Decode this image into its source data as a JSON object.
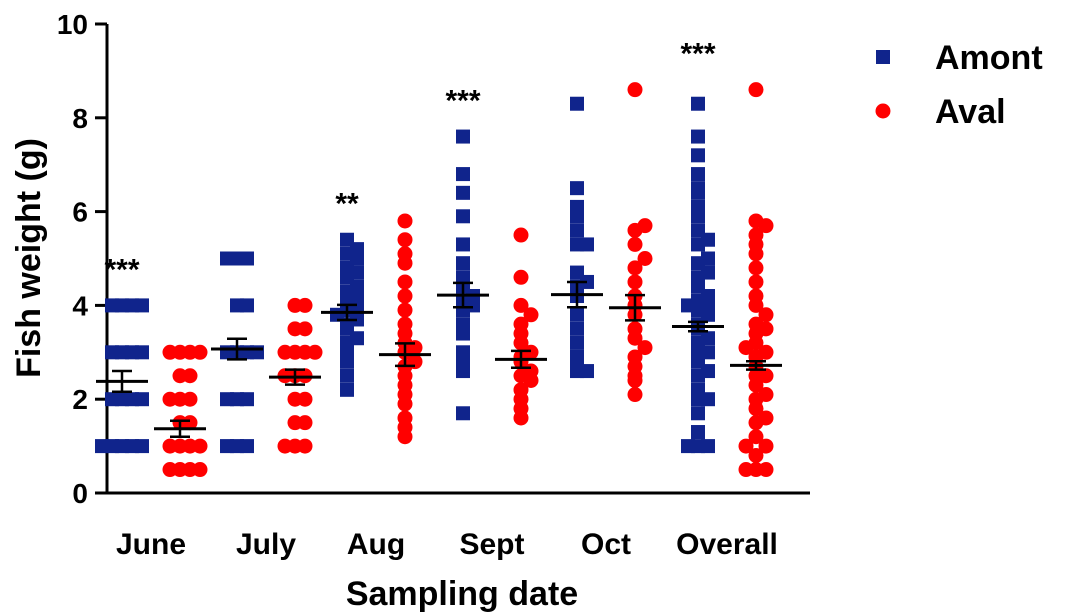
{
  "chart_data": {
    "type": "scatter",
    "ylabel": "Fish weight (g)",
    "xlabel": "Sampling date",
    "ylim": [
      0,
      10
    ],
    "yticks": [
      "0",
      "2",
      "4",
      "6",
      "8",
      "10"
    ],
    "categories": [
      "June",
      "July",
      "Aug",
      "Sept",
      "Oct",
      "Overall"
    ],
    "legend_position": "top-right",
    "colors": {
      "Amont": "#10248c",
      "Aval": "#ff0000"
    },
    "series": [
      {
        "name": "Amont",
        "marker": "square",
        "color": "#10248c",
        "groups": [
          {
            "category": "June",
            "mean": 2.38,
            "sem": 0.22,
            "significance": "***",
            "values": [
              1,
              1,
              1,
              1,
              1,
              2,
              2,
              2,
              2,
              3,
              3,
              3,
              3,
              4,
              4,
              4,
              4
            ]
          },
          {
            "category": "July",
            "mean": 3.07,
            "sem": 0.22,
            "significance": "",
            "values": [
              1,
              1,
              1,
              2,
              2,
              2,
              3,
              3,
              3,
              3,
              4,
              4,
              5,
              5,
              5
            ]
          },
          {
            "category": "Aug",
            "mean": 3.85,
            "sem": 0.16,
            "significance": "**",
            "values": [
              2.2,
              2.5,
              2.8,
              3.0,
              3.2,
              3.3,
              3.5,
              3.6,
              3.7,
              3.8,
              3.9,
              4.0,
              4.1,
              4.2,
              4.3,
              4.4,
              4.6,
              4.7,
              4.8,
              5.0,
              5.1,
              5.2,
              5.4
            ]
          },
          {
            "category": "Sept",
            "mean": 4.22,
            "sem": 0.26,
            "significance": "***",
            "values": [
              1.7,
              2.6,
              2.8,
              3.0,
              3.4,
              3.6,
              3.9,
              4.0,
              4.1,
              4.2,
              4.4,
              4.6,
              4.9,
              5.3,
              5.9,
              6.4,
              6.8,
              7.6
            ]
          },
          {
            "category": "Oct",
            "mean": 4.23,
            "sem": 0.27,
            "significance": "",
            "values": [
              2.6,
              2.6,
              2.7,
              2.9,
              3.2,
              3.5,
              3.8,
              4.2,
              4.4,
              4.5,
              4.7,
              5.3,
              5.3,
              5.6,
              5.9,
              6.1,
              6.5,
              8.3
            ]
          },
          {
            "category": "Overall",
            "mean": 3.55,
            "sem": 0.1,
            "significance": "***",
            "values": [
              1,
              1,
              1,
              1.3,
              1.7,
              2.0,
              2.0,
              2.2,
              2.5,
              2.6,
              2.8,
              3.0,
              3.0,
              3.2,
              3.3,
              3.5,
              3.6,
              3.8,
              3.9,
              4.0,
              4.0,
              4.1,
              4.2,
              4.4,
              4.6,
              4.7,
              4.9,
              5.0,
              5.3,
              5.4,
              5.6,
              5.9,
              6.1,
              6.4,
              6.5,
              6.8,
              7.2,
              7.6,
              8.3
            ]
          }
        ]
      },
      {
        "name": "Aval",
        "marker": "circle",
        "color": "#ff0000",
        "groups": [
          {
            "category": "June",
            "mean": 1.37,
            "sem": 0.17,
            "significance": "",
            "values": [
              0.5,
              0.5,
              0.5,
              0.5,
              1,
              1,
              1,
              1,
              1.5,
              1.5,
              2,
              2,
              2,
              2.5,
              2.5,
              3,
              3,
              3,
              3
            ]
          },
          {
            "category": "July",
            "mean": 2.47,
            "sem": 0.16,
            "significance": "",
            "values": [
              1,
              1,
              1,
              1.5,
              1.5,
              2,
              2,
              2.5,
              2.5,
              2.5,
              3,
              3,
              3,
              3,
              3.5,
              3.5,
              4,
              4
            ]
          },
          {
            "category": "Aug",
            "mean": 2.95,
            "sem": 0.24,
            "significance": "",
            "values": [
              1.2,
              1.4,
              1.6,
              1.9,
              2.1,
              2.3,
              2.5,
              2.7,
              2.8,
              3.0,
              3.1,
              3.2,
              3.4,
              3.6,
              3.9,
              4.2,
              4.5,
              4.9,
              5.1,
              5.4,
              5.8
            ]
          },
          {
            "category": "Sept",
            "mean": 2.85,
            "sem": 0.18,
            "significance": "",
            "values": [
              1.6,
              1.8,
              2.0,
              2.2,
              2.4,
              2.5,
              2.6,
              2.8,
              2.9,
              3.0,
              3.2,
              3.4,
              3.6,
              3.8,
              4.0,
              4.6,
              5.5
            ]
          },
          {
            "category": "Oct",
            "mean": 3.95,
            "sem": 0.27,
            "significance": "",
            "values": [
              2.1,
              2.4,
              2.5,
              2.7,
              2.9,
              3.1,
              3.3,
              3.5,
              3.8,
              4.0,
              4.2,
              4.5,
              4.8,
              5.0,
              5.3,
              5.6,
              5.7,
              8.6
            ]
          },
          {
            "category": "Overall",
            "mean": 2.72,
            "sem": 0.09,
            "significance": "",
            "values": [
              0.5,
              0.5,
              0.5,
              0.8,
              1.0,
              1.0,
              1.2,
              1.5,
              1.6,
              1.8,
              2.0,
              2.1,
              2.3,
              2.5,
              2.5,
              2.7,
              2.9,
              3.0,
              3.1,
              3.2,
              3.4,
              3.5,
              3.6,
              3.8,
              4.0,
              4.2,
              4.5,
              4.8,
              5.1,
              5.3,
              5.5,
              5.7,
              5.8,
              8.6
            ]
          }
        ]
      }
    ]
  }
}
